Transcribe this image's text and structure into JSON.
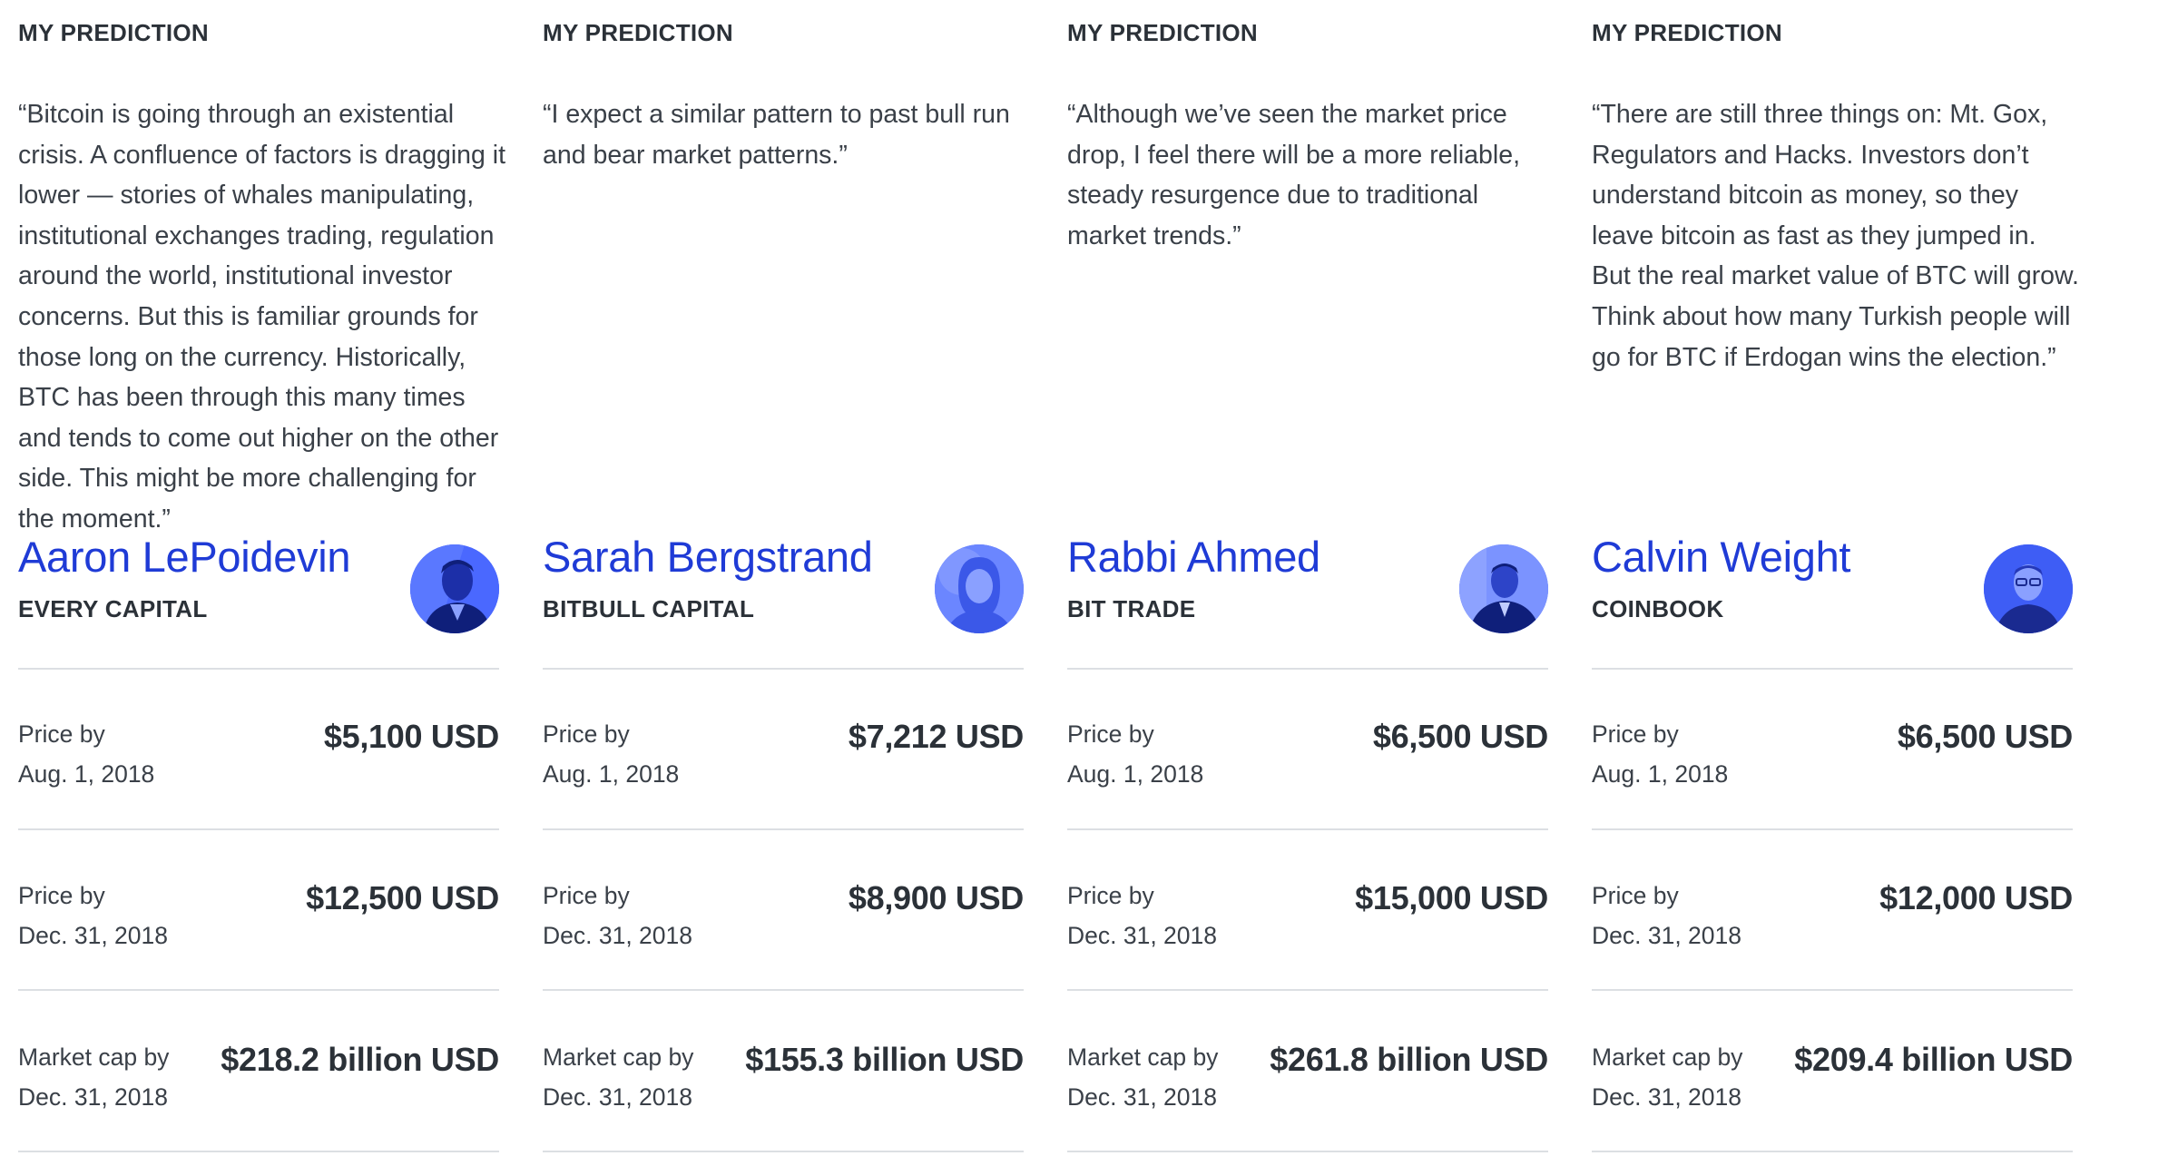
{
  "cards": [
    {
      "eyebrow": "MY PREDICTION",
      "quote": "“Bitcoin is going through an existential crisis. A confluence of factors is dragging it lower — stories of whales manipulating, institutional exchanges trading, regulation around the world, institutional investor concerns. But this is familiar grounds for those long on the currency. Historically, BTC has been through this many times and tends to come out higher on the other side. This might be more challenging for the moment.”",
      "name": "Aaron LePoidevin",
      "company": "EVERY CAPITAL",
      "avatar_icon": "person-photo",
      "stats": [
        {
          "label_line1": "Price by",
          "label_line2": "Aug. 1, 2018",
          "value": "$5,100 USD"
        },
        {
          "label_line1": "Price by",
          "label_line2": "Dec. 31, 2018",
          "value": "$12,500 USD"
        },
        {
          "label_line1": "Market cap by",
          "label_line2": "Dec. 31, 2018",
          "value": "$218.2 billion USD"
        }
      ]
    },
    {
      "eyebrow": "MY PREDICTION",
      "quote": "“I expect a similar pattern to past bull run and bear market patterns.”",
      "name": "Sarah Bergstrand",
      "company": "BITBULL CAPITAL",
      "avatar_icon": "person-photo",
      "stats": [
        {
          "label_line1": "Price by",
          "label_line2": "Aug. 1, 2018",
          "value": "$7,212 USD"
        },
        {
          "label_line1": "Price by",
          "label_line2": "Dec. 31, 2018",
          "value": "$8,900 USD"
        },
        {
          "label_line1": "Market cap by",
          "label_line2": "Dec. 31, 2018",
          "value": "$155.3 billion USD"
        }
      ]
    },
    {
      "eyebrow": "MY PREDICTION",
      "quote": "“Although we’ve seen the market price drop, I feel there will be a more reliable, steady resurgence due to traditional market trends.”",
      "name": "Rabbi Ahmed",
      "company": "BIT TRADE",
      "avatar_icon": "person-photo",
      "stats": [
        {
          "label_line1": "Price by",
          "label_line2": "Aug. 1, 2018",
          "value": "$6,500 USD"
        },
        {
          "label_line1": "Price by",
          "label_line2": "Dec. 31, 2018",
          "value": "$15,000 USD"
        },
        {
          "label_line1": "Market cap by",
          "label_line2": "Dec. 31, 2018",
          "value": "$261.8 billion USD"
        }
      ]
    },
    {
      "eyebrow": "MY PREDICTION",
      "quote": "“There are still three things on: Mt. Gox, Regulators and Hacks. Investors don’t understand bitcoin as money, so they leave bitcoin as fast as they jumped in. But the real market value of BTC will grow. Think about how many Turkish people will go for BTC if Erdogan wins the election.”",
      "name": "Calvin Weight",
      "company": "COINBOOK",
      "avatar_icon": "person-photo",
      "stats": [
        {
          "label_line1": "Price by",
          "label_line2": "Aug. 1, 2018",
          "value": "$6,500 USD"
        },
        {
          "label_line1": "Price by",
          "label_line2": "Dec. 31, 2018",
          "value": "$12,000 USD"
        },
        {
          "label_line1": "Market cap by",
          "label_line2": "Dec. 31, 2018",
          "value": "$209.4 billion USD"
        }
      ]
    }
  ],
  "colors": {
    "name_blue": "#1f3bd6",
    "avatar_blue": "#3b5bff",
    "divider": "#dcdfe3",
    "text": "#2b3138"
  }
}
